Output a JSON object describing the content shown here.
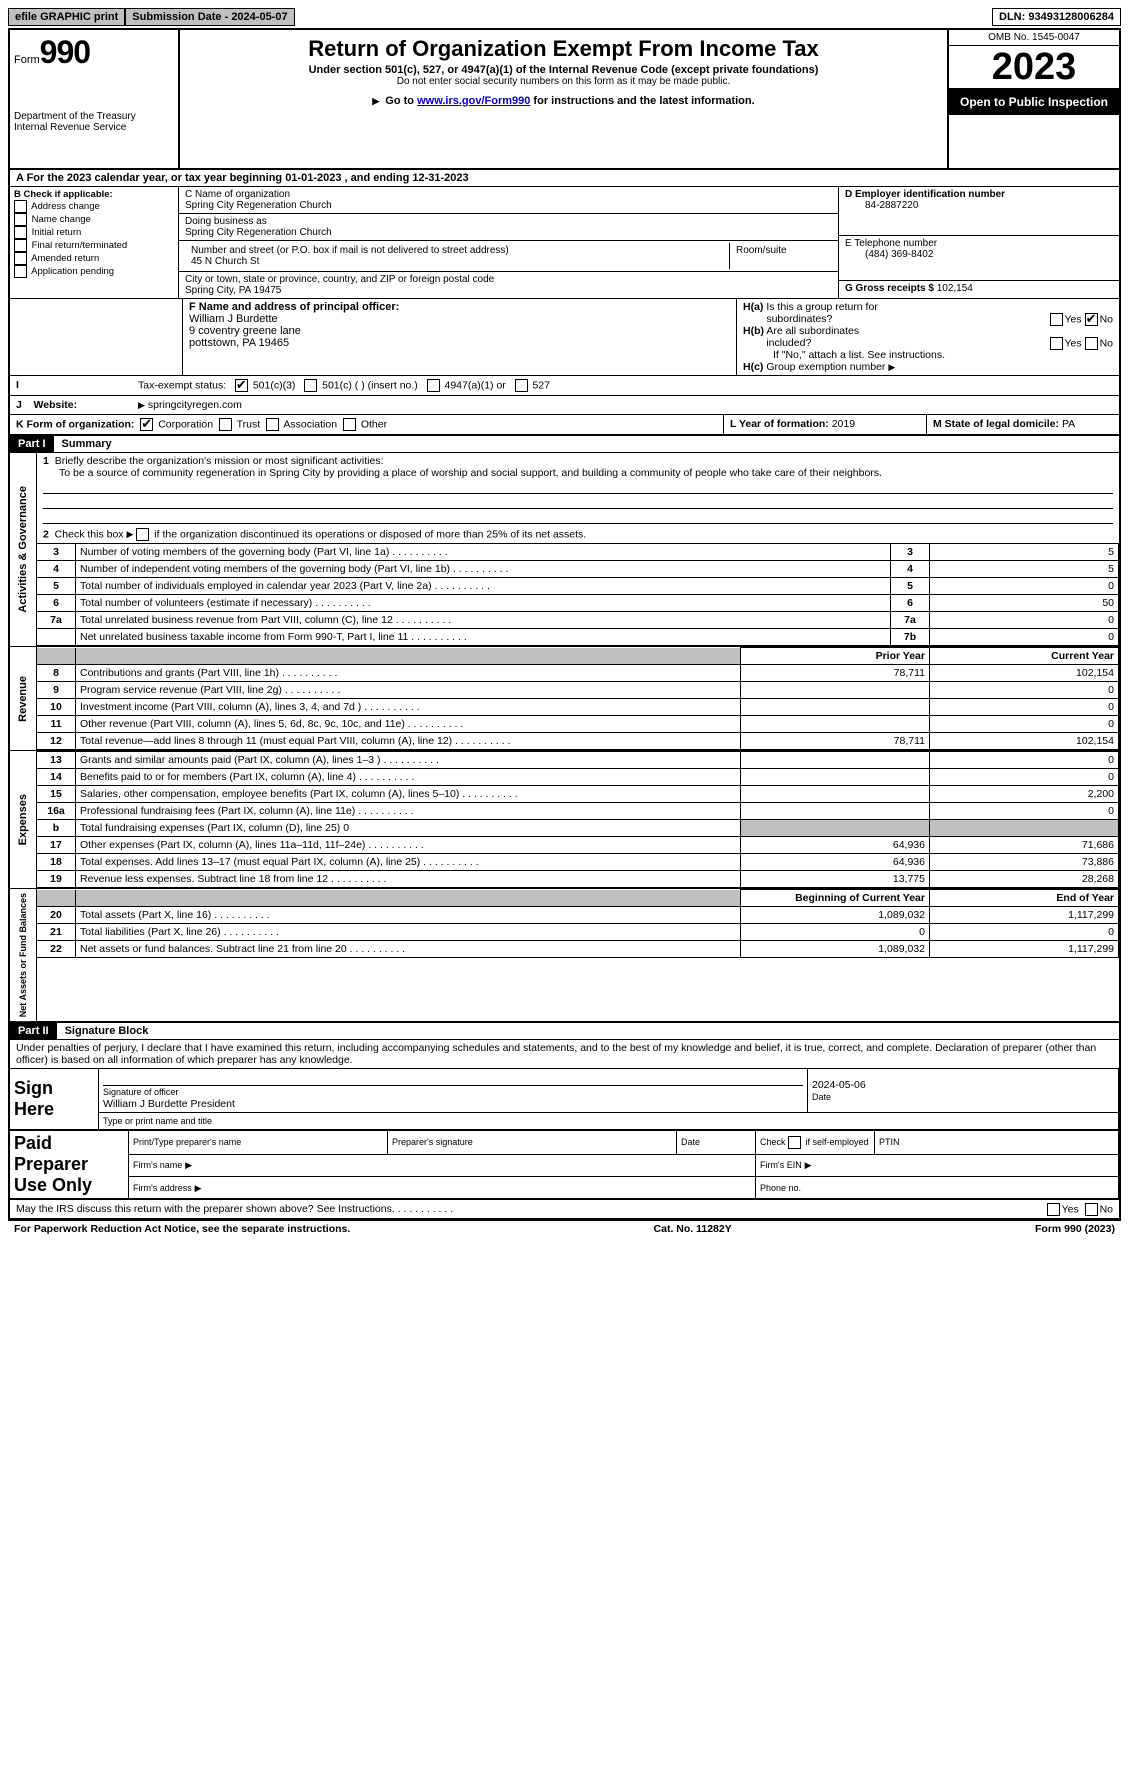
{
  "top_bar": {
    "efile": "efile GRAPHIC print",
    "submission": "Submission Date - 2024-05-07",
    "dln": "DLN: 93493128006284"
  },
  "header": {
    "form_label": "Form",
    "form_number": "990",
    "title": "Return of Organization Exempt From Income Tax",
    "subtitle": "Under section 501(c), 527, or 4947(a)(1) of the Internal Revenue Code (except private foundations)",
    "note1": "Do not enter social security numbers on this form as it may be made public.",
    "note2_prefix": "Go to ",
    "note2_link": "www.irs.gov/Form990",
    "note2_suffix": " for instructions and the latest information.",
    "dept": "Department of the Treasury\nInternal Revenue Service",
    "omb": "OMB No. 1545-0047",
    "year": "2023",
    "open": "Open to Public Inspection"
  },
  "row_a": "A For the 2023 calendar year, or tax year beginning 01-01-2023    , and ending 12-31-2023",
  "section_b": {
    "label": "B Check if applicable:",
    "items": [
      "Address change",
      "Name change",
      "Initial return",
      "Final return/terminated",
      "Amended return",
      "Application pending"
    ]
  },
  "section_c": {
    "name_label": "C Name of organization",
    "name": "Spring City Regeneration Church",
    "dba_label": "Doing business as",
    "dba": "Spring City Regeneration Church",
    "street_label": "Number and street (or P.O. box if mail is not delivered to street address)",
    "street": "45 N Church St",
    "room_label": "Room/suite",
    "city_label": "City or town, state or province, country, and ZIP or foreign postal code",
    "city": "Spring City, PA  19475"
  },
  "section_d": {
    "label": "D Employer identification number",
    "value": "84-2887220"
  },
  "section_e": {
    "label": "E Telephone number",
    "value": "(484) 369-8402"
  },
  "section_g": {
    "label": "G Gross receipts $",
    "value": "102,154"
  },
  "section_f": {
    "label": "F  Name and address of principal officer:",
    "name": "William J Burdette",
    "street": "9 coventry greene lane",
    "city": "pottstown, PA  19465"
  },
  "section_h": {
    "ha_label": "H(a)  Is this a group return for subordinates?",
    "ha_no": true,
    "hb_label": "H(b)  Are all subordinates included?",
    "hb_note": "If \"No,\" attach a list. See instructions.",
    "hc_label": "H(c)  Group exemption number"
  },
  "row_i": {
    "label": "Tax-exempt status:",
    "opts": [
      "501(c)(3)",
      "501(c) (  ) (insert no.)",
      "4947(a)(1) or",
      "527"
    ],
    "checked": 0
  },
  "row_j": {
    "label": "Website:",
    "value": "springcityregen.com"
  },
  "row_k": {
    "label": "K Form of organization:",
    "opts": [
      "Corporation",
      "Trust",
      "Association",
      "Other"
    ],
    "checked": 0,
    "l_label": "L Year of formation:",
    "l_value": "2019",
    "m_label": "M State of legal domicile:",
    "m_value": "PA"
  },
  "part1": {
    "header": "Part I",
    "title": "Summary",
    "mission_prompt": "Briefly describe the organization's mission or most significant activities:",
    "mission": "To be a source of community regeneration in Spring City by providing a place of worship and social support, and building a community of people who take care of their neighbors.",
    "line2": "Check this box      if the organization discontinued its operations or disposed of more than 25% of its net assets.",
    "sections": {
      "governance": "Activities & Governance",
      "revenue": "Revenue",
      "expenses": "Expenses",
      "netassets": "Net Assets or Fund Balances"
    },
    "gov_rows": [
      {
        "n": "3",
        "label": "Number of voting members of the governing body (Part VI, line 1a)",
        "ref": "3",
        "val": "5"
      },
      {
        "n": "4",
        "label": "Number of independent voting members of the governing body (Part VI, line 1b)",
        "ref": "4",
        "val": "5"
      },
      {
        "n": "5",
        "label": "Total number of individuals employed in calendar year 2023 (Part V, line 2a)",
        "ref": "5",
        "val": "0"
      },
      {
        "n": "6",
        "label": "Total number of volunteers (estimate if necessary)",
        "ref": "6",
        "val": "50"
      },
      {
        "n": "7a",
        "label": "Total unrelated business revenue from Part VIII, column (C), line 12",
        "ref": "7a",
        "val": "0"
      },
      {
        "n": "",
        "label": "Net unrelated business taxable income from Form 990-T, Part I, line 11",
        "ref": "7b",
        "val": "0"
      }
    ],
    "year_headers": {
      "prior": "Prior Year",
      "current": "Current Year"
    },
    "revenue_rows": [
      {
        "n": "8",
        "label": "Contributions and grants (Part VIII, line 1h)",
        "prior": "78,711",
        "current": "102,154"
      },
      {
        "n": "9",
        "label": "Program service revenue (Part VIII, line 2g)",
        "prior": "",
        "current": "0"
      },
      {
        "n": "10",
        "label": "Investment income (Part VIII, column (A), lines 3, 4, and 7d )",
        "prior": "",
        "current": "0"
      },
      {
        "n": "11",
        "label": "Other revenue (Part VIII, column (A), lines 5, 6d, 8c, 9c, 10c, and 11e)",
        "prior": "",
        "current": "0"
      },
      {
        "n": "12",
        "label": "Total revenue—add lines 8 through 11 (must equal Part VIII, column (A), line 12)",
        "prior": "78,711",
        "current": "102,154"
      }
    ],
    "expense_rows": [
      {
        "n": "13",
        "label": "Grants and similar amounts paid (Part IX, column (A), lines 1–3 )",
        "prior": "",
        "current": "0"
      },
      {
        "n": "14",
        "label": "Benefits paid to or for members (Part IX, column (A), line 4)",
        "prior": "",
        "current": "0"
      },
      {
        "n": "15",
        "label": "Salaries, other compensation, employee benefits (Part IX, column (A), lines 5–10)",
        "prior": "",
        "current": "2,200"
      },
      {
        "n": "16a",
        "label": "Professional fundraising fees (Part IX, column (A), line 11e)",
        "prior": "",
        "current": "0"
      },
      {
        "n": "b",
        "label": "Total fundraising expenses (Part IX, column (D), line 25) 0",
        "gray": true
      },
      {
        "n": "17",
        "label": "Other expenses (Part IX, column (A), lines 11a–11d, 11f–24e)",
        "prior": "64,936",
        "current": "71,686"
      },
      {
        "n": "18",
        "label": "Total expenses. Add lines 13–17 (must equal Part IX, column (A), line 25)",
        "prior": "64,936",
        "current": "73,886"
      },
      {
        "n": "19",
        "label": "Revenue less expenses. Subtract line 18 from line 12",
        "prior": "13,775",
        "current": "28,268"
      }
    ],
    "net_headers": {
      "begin": "Beginning of Current Year",
      "end": "End of Year"
    },
    "net_rows": [
      {
        "n": "20",
        "label": "Total assets (Part X, line 16)",
        "begin": "1,089,032",
        "end": "1,117,299"
      },
      {
        "n": "21",
        "label": "Total liabilities (Part X, line 26)",
        "begin": "0",
        "end": "0"
      },
      {
        "n": "22",
        "label": "Net assets or fund balances. Subtract line 21 from line 20",
        "begin": "1,089,032",
        "end": "1,117,299"
      }
    ]
  },
  "part2": {
    "header": "Part II",
    "title": "Signature Block",
    "declaration": "Under penalties of perjury, I declare that I have examined this return, including accompanying schedules and statements, and to the best of my knowledge and belief, it is true, correct, and complete. Declaration of preparer (other than officer) is based on all information of which preparer has any knowledge.",
    "sign_here": "Sign Here",
    "sig_date": "2024-05-06",
    "sig_officer_label": "Signature of officer",
    "sig_officer": "William J Burdette President",
    "sig_type_label": "Type or print name and title",
    "date_label": "Date",
    "paid": "Paid Preparer Use Only",
    "prep_name": "Print/Type preparer's name",
    "prep_sig": "Preparer's signature",
    "prep_date": "Date",
    "prep_check": "Check      if self-employed",
    "ptin": "PTIN",
    "firm_name": "Firm's name",
    "firm_ein": "Firm's EIN",
    "firm_addr": "Firm's address",
    "phone": "Phone no.",
    "may_irs": "May the IRS discuss this return with the preparer shown above? See Instructions."
  },
  "footer": {
    "left": "For Paperwork Reduction Act Notice, see the separate instructions.",
    "mid": "Cat. No. 11282Y",
    "right": "Form 990 (2023)"
  }
}
